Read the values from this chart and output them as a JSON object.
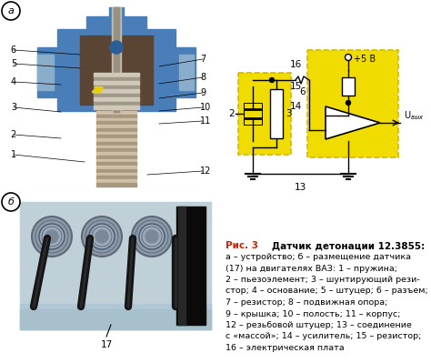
{
  "bg_color": "#ffffff",
  "circuit_bg": "#f0dc00",
  "circuit_bg_border": "#d4b800",
  "sensor_blue": "#4a7eb8",
  "sensor_blue_dark": "#2a5e98",
  "sensor_inner": "#5a4535",
  "sensor_gray": "#888880",
  "thread_light": "#c8b89a",
  "thread_dark": "#908070",
  "photo_bg": "#b8c8d0",
  "photo_bg2": "#a0b8c5",
  "cable_dark": "#111111",
  "engine_gray": "#8090a0",
  "circle_label_a": "а",
  "circle_label_b": "б",
  "caption_red": "#cc2200",
  "labels_16_to_14": [
    "16",
    "15",
    "14"
  ],
  "label_2": "2",
  "label_3": "3",
  "label_6": "6",
  "label_13": "13",
  "label_uout": "Uвых",
  "label_5v": "+5 В",
  "caption_title_1": "Рис. 3",
  "caption_title_2": "    Датчик детонации 12.3855:",
  "caption_lines": [
    "а – устройство; б – размещение датчика",
    "(17) на двигателях ВАЗ: 1 – пружина;",
    "2 – пьезоэлемент; 3 – шунтирующий рези-",
    "стор; 4 – основание; 5 – штуцер; 6 – разъем;",
    "7 – резистор; 8 – подвижная опора;",
    "9 – крышка; 10 – полость; 11 – корпус;",
    "12 – резьбовой штуцер; 13 – соединение",
    "с «массой»; 14 – усилитель; 15 – резистор;",
    "16 – электрическая плата"
  ],
  "sensor_labels": [
    [
      6,
      18,
      60,
      80,
      55
    ],
    [
      5,
      18,
      72,
      78,
      68
    ],
    [
      7,
      230,
      68,
      195,
      72
    ],
    [
      4,
      18,
      88,
      72,
      92
    ],
    [
      8,
      230,
      88,
      185,
      95
    ],
    [
      9,
      230,
      103,
      188,
      110
    ],
    [
      3,
      18,
      118,
      72,
      120
    ],
    [
      10,
      230,
      115,
      185,
      118
    ],
    [
      11,
      230,
      130,
      185,
      132
    ],
    [
      2,
      18,
      145,
      72,
      148
    ],
    [
      1,
      18,
      168,
      90,
      175
    ],
    [
      12,
      230,
      185,
      155,
      190
    ]
  ]
}
